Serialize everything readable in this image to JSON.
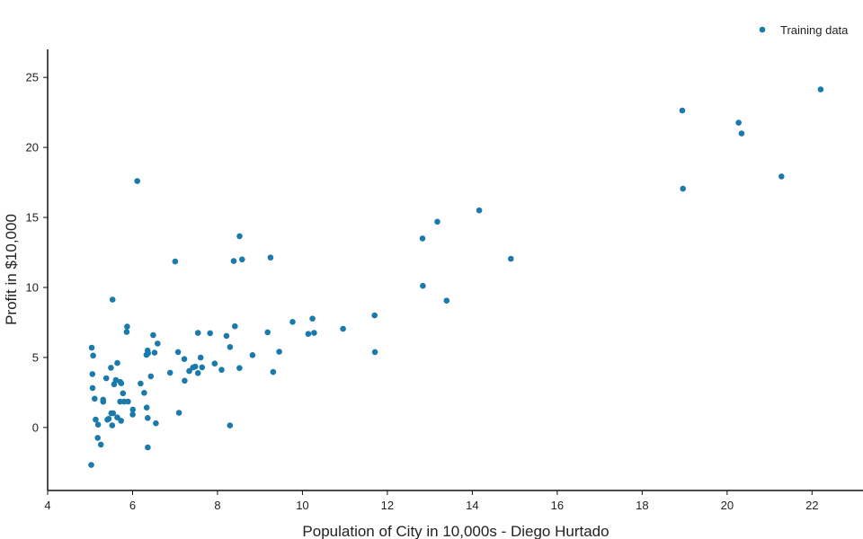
{
  "chart_data": {
    "type": "scatter",
    "title": "",
    "xlabel": "Population of City in 10,000s - Diego Hurtado",
    "ylabel": "Profit in $10,000",
    "xlim": [
      4,
      23.2
    ],
    "ylim": [
      -4.5,
      27
    ],
    "xticks": [
      4,
      6,
      8,
      10,
      12,
      14,
      16,
      18,
      20,
      22
    ],
    "yticks": [
      0,
      5,
      10,
      15,
      20,
      25
    ],
    "grid": false,
    "legend_position": "top-right",
    "marker_color": "#1a7aab",
    "series": [
      {
        "name": "Training data",
        "points": [
          [
            6.1101,
            17.592
          ],
          [
            5.5277,
            9.1302
          ],
          [
            8.5186,
            13.662
          ],
          [
            7.0032,
            11.854
          ],
          [
            5.8598,
            6.8233
          ],
          [
            8.3829,
            11.886
          ],
          [
            7.4764,
            4.3483
          ],
          [
            8.5781,
            12.0
          ],
          [
            6.4862,
            6.5987
          ],
          [
            5.0546,
            3.8166
          ],
          [
            5.7107,
            3.2522
          ],
          [
            14.164,
            15.505
          ],
          [
            5.734,
            3.1551
          ],
          [
            8.4084,
            7.2258
          ],
          [
            5.6407,
            0.71618
          ],
          [
            5.3794,
            3.5129
          ],
          [
            6.3654,
            5.3048
          ],
          [
            5.1301,
            0.56077
          ],
          [
            6.4296,
            3.6518
          ],
          [
            7.0708,
            5.3893
          ],
          [
            6.1891,
            3.1386
          ],
          [
            20.27,
            21.767
          ],
          [
            5.4901,
            4.263
          ],
          [
            6.3261,
            5.1875
          ],
          [
            5.5649,
            3.0825
          ],
          [
            18.945,
            22.638
          ],
          [
            12.828,
            13.501
          ],
          [
            10.957,
            7.0467
          ],
          [
            13.176,
            14.692
          ],
          [
            22.203,
            24.147
          ],
          [
            5.2524,
            -1.22
          ],
          [
            6.5894,
            5.9966
          ],
          [
            9.2482,
            12.134
          ],
          [
            5.8918,
            1.8495
          ],
          [
            8.2111,
            6.5426
          ],
          [
            7.9334,
            4.5623
          ],
          [
            8.0959,
            4.1164
          ],
          [
            5.6063,
            3.3928
          ],
          [
            12.836,
            10.117
          ],
          [
            6.3534,
            5.4974
          ],
          [
            5.4069,
            0.55657
          ],
          [
            6.8825,
            3.9115
          ],
          [
            11.708,
            5.3854
          ],
          [
            5.7737,
            2.4406
          ],
          [
            7.8247,
            6.7318
          ],
          [
            7.0931,
            1.0463
          ],
          [
            5.0702,
            5.1337
          ],
          [
            5.8014,
            1.844
          ],
          [
            11.7,
            8.0043
          ],
          [
            5.5416,
            1.0179
          ],
          [
            7.5402,
            6.7504
          ],
          [
            5.3077,
            1.8396
          ],
          [
            7.4239,
            4.2885
          ],
          [
            7.6031,
            4.9981
          ],
          [
            6.3328,
            1.4233
          ],
          [
            6.3589,
            -1.4211
          ],
          [
            6.2742,
            2.4756
          ],
          [
            5.6397,
            4.6042
          ],
          [
            9.3102,
            3.9624
          ],
          [
            9.4536,
            5.4141
          ],
          [
            8.8254,
            5.1694
          ],
          [
            5.1793,
            -0.74279
          ],
          [
            21.279,
            17.929
          ],
          [
            14.908,
            12.054
          ],
          [
            18.959,
            17.054
          ],
          [
            7.2182,
            4.8852
          ],
          [
            8.2951,
            5.7442
          ],
          [
            10.236,
            7.7754
          ],
          [
            5.4994,
            1.0173
          ],
          [
            20.341,
            20.992
          ],
          [
            10.136,
            6.6799
          ],
          [
            7.3345,
            4.0259
          ],
          [
            6.0062,
            1.2784
          ],
          [
            7.2259,
            3.3411
          ],
          [
            5.0269,
            -2.6807
          ],
          [
            6.5479,
            0.29678
          ],
          [
            7.5386,
            3.8845
          ],
          [
            5.0365,
            5.7014
          ],
          [
            10.274,
            6.7526
          ],
          [
            5.1077,
            2.0576
          ],
          [
            5.7292,
            0.47953
          ],
          [
            5.1884,
            0.20421
          ],
          [
            6.3557,
            0.67861
          ],
          [
            9.7687,
            7.5435
          ],
          [
            6.5159,
            5.3436
          ],
          [
            8.5172,
            4.2415
          ],
          [
            9.1802,
            6.7981
          ],
          [
            6.002,
            0.92695
          ],
          [
            5.5204,
            0.152
          ],
          [
            5.0594,
            2.8214
          ],
          [
            5.7077,
            1.8451
          ],
          [
            7.6366,
            4.2959
          ],
          [
            5.8707,
            7.2029
          ],
          [
            5.3054,
            1.9869
          ],
          [
            8.2934,
            0.14454
          ],
          [
            13.394,
            9.0551
          ],
          [
            5.4369,
            0.61705
          ]
        ]
      }
    ]
  }
}
